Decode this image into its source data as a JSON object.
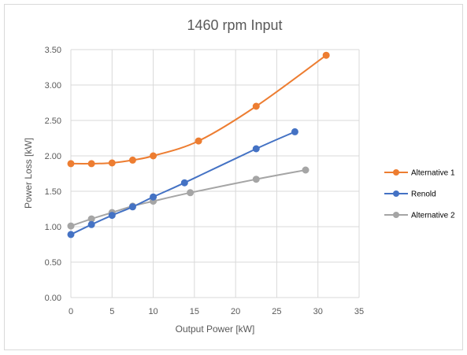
{
  "chart_data": {
    "type": "line",
    "title": "1460 rpm Input",
    "xlabel": "Output Power [kW]",
    "ylabel": "Power Loss [kW]",
    "xlim": [
      0,
      35
    ],
    "ylim": [
      0,
      3.5
    ],
    "x_ticks": [
      "0",
      "5",
      "10",
      "15",
      "20",
      "25",
      "30",
      "35"
    ],
    "y_ticks": [
      "0.00",
      "0.50",
      "1.00",
      "1.50",
      "2.00",
      "2.50",
      "3.00",
      "3.50"
    ],
    "grid": true,
    "smooth": true,
    "legend_position": "right",
    "series": [
      {
        "name": "Alternative 1",
        "color": "#ED7D31",
        "x": [
          0,
          2.5,
          5,
          7.5,
          10,
          15.5,
          22.5,
          31
        ],
        "y": [
          1.89,
          1.89,
          1.9,
          1.94,
          2.0,
          2.21,
          2.7,
          3.42
        ]
      },
      {
        "name": "Renold",
        "color": "#4472C4",
        "x": [
          0,
          2.5,
          5,
          7.5,
          10,
          13.8,
          22.5,
          27.2
        ],
        "y": [
          0.89,
          1.03,
          1.16,
          1.28,
          1.42,
          1.62,
          2.1,
          2.34
        ]
      },
      {
        "name": "Alternative 2",
        "color": "#A5A5A5",
        "x": [
          0,
          2.5,
          5,
          7.5,
          10,
          14.5,
          22.5,
          28.5
        ],
        "y": [
          1.01,
          1.11,
          1.2,
          1.29,
          1.36,
          1.48,
          1.67,
          1.8
        ]
      }
    ]
  }
}
